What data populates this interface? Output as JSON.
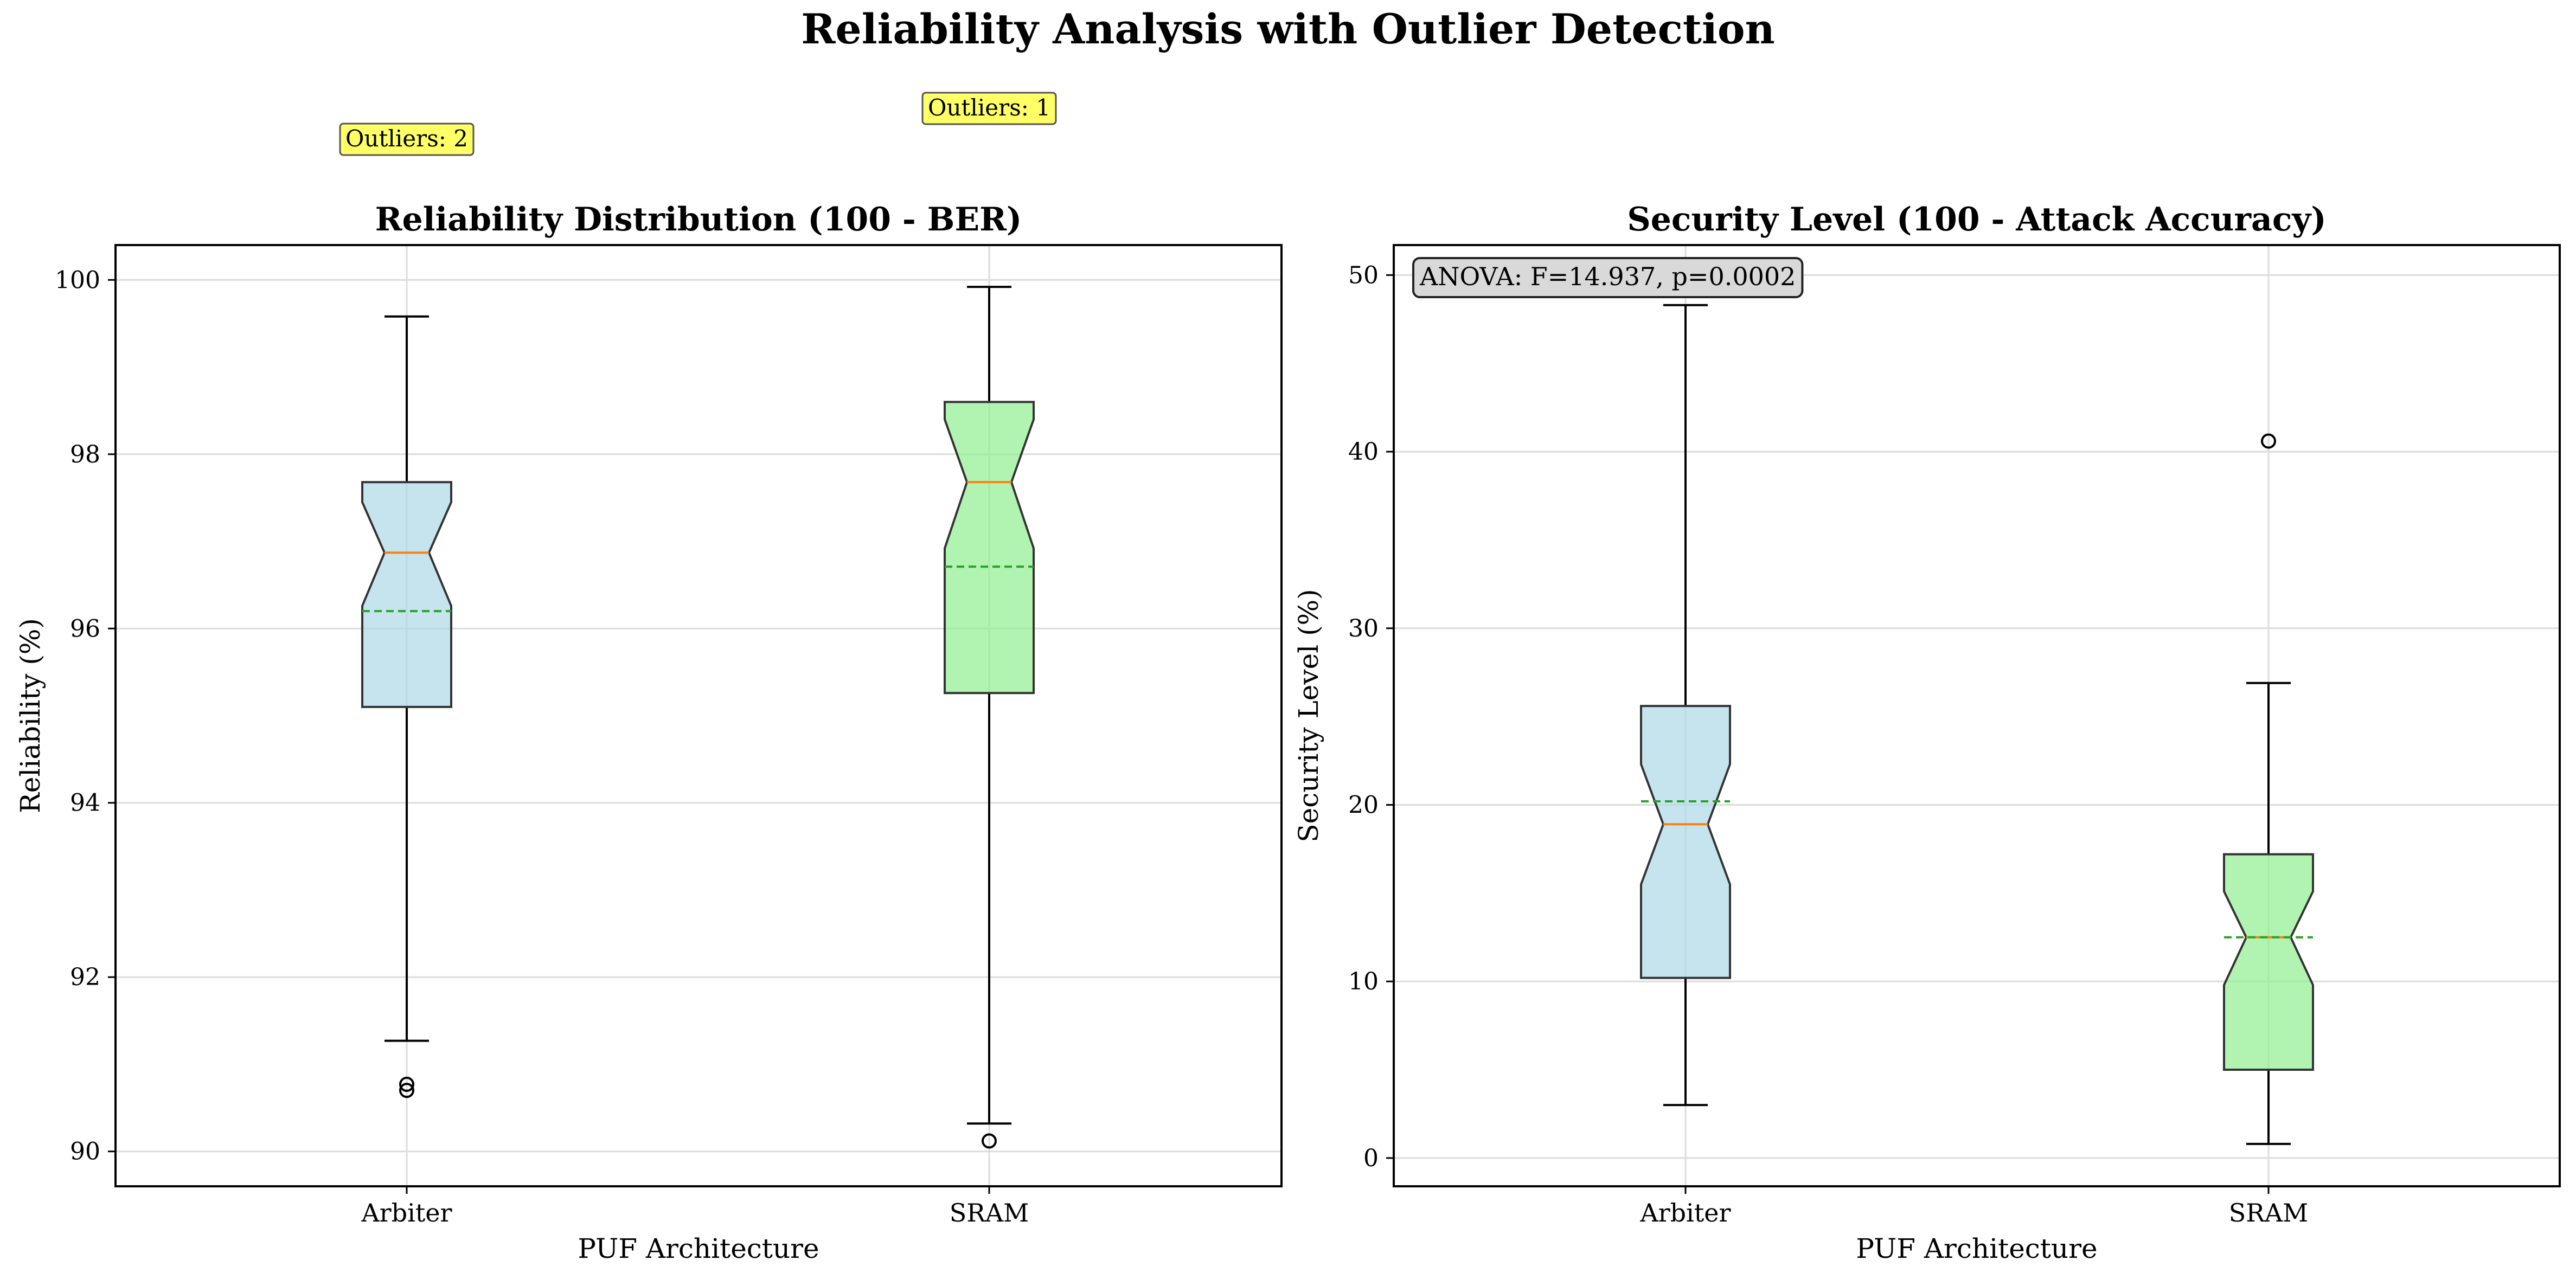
{
  "figure": {
    "title": "Reliability Analysis with Outlier Detection"
  },
  "chart_data": [
    {
      "type": "box",
      "title": "Reliability Distribution (100 - BER)",
      "xlabel": "PUF Architecture",
      "ylabel": "Reliability (%)",
      "categories": [
        "Arbiter",
        "SRAM"
      ],
      "ylim": [
        89.6,
        100.4
      ],
      "yticks": [
        90,
        92,
        94,
        96,
        98,
        100
      ],
      "grid": true,
      "notched": true,
      "boxes": [
        {
          "label": "Arbiter",
          "color": "#add8e6",
          "whisker_low": 91.27,
          "q1": 95.1,
          "median": 96.87,
          "q3": 97.68,
          "whisker_high": 99.58,
          "mean": 96.2,
          "notch_low": 96.26,
          "notch_high": 97.45,
          "outliers": [
            90.77,
            90.7
          ]
        },
        {
          "label": "SRAM",
          "color": "#90ee90",
          "whisker_low": 90.32,
          "q1": 95.26,
          "median": 97.68,
          "q3": 98.6,
          "whisker_high": 99.92,
          "mean": 96.71,
          "notch_low": 96.92,
          "notch_high": 98.4,
          "outliers": [
            90.12
          ]
        }
      ],
      "annotations": [
        {
          "category": "Arbiter",
          "text": "Outliers: 2"
        },
        {
          "category": "SRAM",
          "text": "Outliers: 1"
        }
      ]
    },
    {
      "type": "box",
      "title": "Security Level (100 - Attack Accuracy)",
      "xlabel": "PUF Architecture",
      "ylabel": "Security Level (%)",
      "categories": [
        "Arbiter",
        "SRAM"
      ],
      "ylim": [
        -1.6,
        51.7
      ],
      "yticks": [
        0,
        10,
        20,
        30,
        40,
        50
      ],
      "grid": true,
      "notched": true,
      "boxes": [
        {
          "label": "Arbiter",
          "color": "#add8e6",
          "whisker_low": 3.0,
          "q1": 10.2,
          "median": 18.9,
          "q3": 25.6,
          "whisker_high": 48.3,
          "mean": 20.2,
          "notch_low": 15.5,
          "notch_high": 22.3,
          "outliers": []
        },
        {
          "label": "SRAM",
          "color": "#90ee90",
          "whisker_low": 0.8,
          "q1": 5.0,
          "median": 12.5,
          "q3": 17.2,
          "whisker_high": 26.9,
          "mean": 12.5,
          "notch_low": 9.8,
          "notch_high": 15.1,
          "outliers": [
            40.6
          ]
        }
      ],
      "annotations": [
        {
          "text": "ANOVA: F=14.937, p=0.0002"
        }
      ]
    }
  ],
  "colors": {
    "median": "#ff7f0e",
    "mean": "#2ca02c",
    "annotation_yellow": "#ffff66",
    "annotation_gray": "#d9d9d9"
  }
}
